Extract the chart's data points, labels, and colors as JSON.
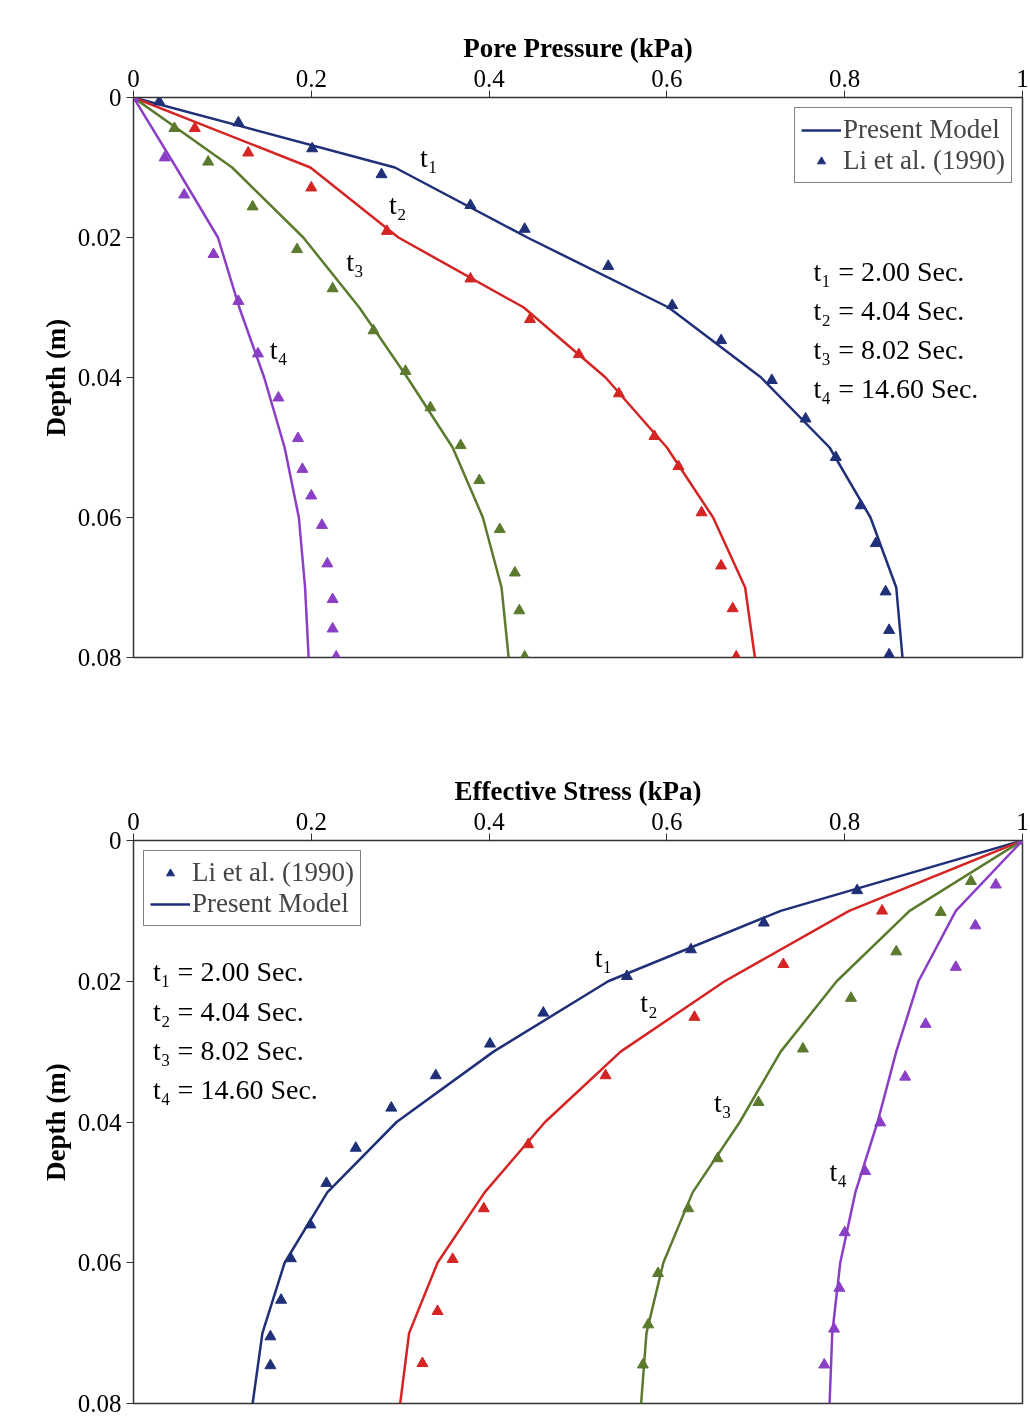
{
  "chart_data": [
    {
      "type": "line",
      "xlabel": "Pore Pressure (kPa)",
      "ylabel": "Depth (m)",
      "xlim": [
        0,
        1
      ],
      "xticks": [
        0,
        0.2,
        0.4,
        0.6,
        0.8,
        1
      ],
      "ylim": [
        0.08,
        0
      ],
      "yticks": [
        0,
        0.02,
        0.04,
        0.06,
        0.08
      ],
      "legend": "top right",
      "grid": false,
      "series": [
        {
          "name": "Present Model",
          "color": "#1f2f78",
          "x": [
            0,
            0.294,
            0.443,
            0.602,
            0.706,
            0.783,
            0.829,
            0.858,
            0.865
          ],
          "values": [
            0,
            0.01,
            0.02,
            0.03,
            0.04,
            0.05,
            0.06,
            0.07,
            0.08
          ]
        },
        {
          "name": "Li et al. (1990)",
          "type": "scatter",
          "marker": "triangle",
          "color": "#1f2f78",
          "x": [
            0,
            0.029,
            0.118,
            0.201,
            0.279,
            0.379,
            0.44,
            0.534,
            0.606,
            0.661,
            0.718,
            0.756,
            0.79,
            0.818,
            0.835,
            0.846,
            0.85,
            0.85
          ],
          "values": [
            0,
            0.0006,
            0.0036,
            0.0073,
            0.011,
            0.0154,
            0.0188,
            0.0241,
            0.0297,
            0.0347,
            0.0404,
            0.0459,
            0.0514,
            0.0583,
            0.0637,
            0.0706,
            0.0761,
            0.0796
          ]
        },
        {
          "color": "#d42424",
          "x": [
            0,
            0.199,
            0.298,
            0.439,
            0.531,
            0.6,
            0.652,
            0.688,
            0.699
          ],
          "values": [
            0,
            0.01,
            0.02,
            0.03,
            0.04,
            0.05,
            0.06,
            0.07,
            0.08
          ]
        },
        {
          "type": "scatter",
          "marker": "triangle",
          "color": "#d42424",
          "x": [
            0,
            0.069,
            0.129,
            0.2,
            0.285,
            0.379,
            0.446,
            0.501,
            0.546,
            0.586,
            0.613,
            0.639,
            0.661,
            0.674,
            0.678
          ],
          "values": [
            0,
            0.0044,
            0.0079,
            0.0129,
            0.0191,
            0.0259,
            0.0317,
            0.0367,
            0.0423,
            0.0484,
            0.0527,
            0.0593,
            0.0669,
            0.073,
            0.0799
          ]
        },
        {
          "color": "#5b7a2e",
          "x": [
            0,
            0.111,
            0.191,
            0.254,
            0.308,
            0.359,
            0.393,
            0.414,
            0.422
          ],
          "values": [
            0,
            0.01,
            0.02,
            0.03,
            0.04,
            0.05,
            0.06,
            0.07,
            0.08
          ]
        },
        {
          "type": "scatter",
          "marker": "triangle",
          "color": "#5b7a2e",
          "x": [
            0,
            0.046,
            0.084,
            0.134,
            0.184,
            0.224,
            0.27,
            0.306,
            0.334,
            0.368,
            0.389,
            0.412,
            0.429,
            0.434,
            0.44
          ],
          "values": [
            0,
            0.0044,
            0.0092,
            0.0156,
            0.0217,
            0.0273,
            0.0333,
            0.0391,
            0.0443,
            0.0497,
            0.0547,
            0.0617,
            0.0679,
            0.0733,
            0.0799
          ]
        },
        {
          "color": "#8a3fc6",
          "x": [
            0,
            0.048,
            0.095,
            0.119,
            0.147,
            0.17,
            0.186,
            0.193,
            0.197
          ],
          "values": [
            0,
            0.01,
            0.02,
            0.03,
            0.04,
            0.05,
            0.06,
            0.07,
            0.08
          ]
        },
        {
          "type": "scatter",
          "marker": "triangle",
          "color": "#8a3fc6",
          "x": [
            0,
            0.035,
            0.057,
            0.09,
            0.118,
            0.14,
            0.163,
            0.185,
            0.19,
            0.2,
            0.212,
            0.218,
            0.224,
            0.224,
            0.228
          ],
          "values": [
            0,
            0.0086,
            0.0139,
            0.0224,
            0.0291,
            0.0366,
            0.0429,
            0.0487,
            0.0531,
            0.0569,
            0.0611,
            0.0666,
            0.0717,
            0.0759,
            0.0799
          ]
        }
      ],
      "annotations": [
        {
          "text": "t₁",
          "x": 0.312,
          "y": 0.0112
        },
        {
          "text": "t₂",
          "x": 0.277,
          "y": 0.0179
        },
        {
          "text": "t₃",
          "x": 0.229,
          "y": 0.026
        },
        {
          "text": "t₄",
          "x": 0.143,
          "y": 0.0386
        },
        "t₁ = 2.00   Sec.",
        "t₂ = 4.04   Sec.",
        "t₃ = 8.02   Sec.",
        "t₄ = 14.60 Sec."
      ]
    },
    {
      "type": "line",
      "xlabel": "Effective Stress (kPa)",
      "ylabel": "Depth (m)",
      "xlim": [
        0,
        1
      ],
      "xticks": [
        0,
        0.2,
        0.4,
        0.6,
        0.8,
        1
      ],
      "ylim": [
        0.08,
        0
      ],
      "yticks": [
        0,
        0.02,
        0.04,
        0.06,
        0.08
      ],
      "legend": "top left",
      "grid": false,
      "series": [
        {
          "name": "Li et al. (1990)",
          "type": "scatter",
          "marker": "triangle",
          "color": "#1f2f78",
          "x": [
            1,
            0.814,
            0.709,
            0.627,
            0.555,
            0.461,
            0.401,
            0.34,
            0.29,
            0.25,
            0.217,
            0.199,
            0.177,
            0.166,
            0.154,
            0.154
          ],
          "values": [
            0,
            0.0071,
            0.0117,
            0.0155,
            0.0193,
            0.0245,
            0.0289,
            0.0334,
            0.038,
            0.0437,
            0.0487,
            0.0546,
            0.0594,
            0.0653,
            0.0705,
            0.0746
          ]
        },
        {
          "name": "Present Model",
          "color": "#1f2f78",
          "x": [
            1,
            0.728,
            0.534,
            0.405,
            0.296,
            0.218,
            0.17,
            0.145,
            0.134
          ],
          "values": [
            0,
            0.01,
            0.02,
            0.03,
            0.04,
            0.05,
            0.06,
            0.07,
            0.08
          ]
        },
        {
          "color": "#d42424",
          "x": [
            1,
            0.805,
            0.665,
            0.548,
            0.463,
            0.395,
            0.342,
            0.31,
            0.3
          ],
          "values": [
            0,
            0.01,
            0.02,
            0.03,
            0.04,
            0.05,
            0.06,
            0.07,
            0.08
          ]
        },
        {
          "type": "scatter",
          "marker": "triangle",
          "color": "#d42424",
          "x": [
            1,
            0.842,
            0.731,
            0.631,
            0.531,
            0.444,
            0.394,
            0.359,
            0.342,
            0.325
          ],
          "values": [
            0,
            0.01,
            0.0176,
            0.0251,
            0.0334,
            0.0432,
            0.0523,
            0.0595,
            0.0669,
            0.0743
          ]
        },
        {
          "color": "#5b7a2e",
          "x": [
            1,
            0.873,
            0.791,
            0.728,
            0.682,
            0.629,
            0.596,
            0.577,
            0.571
          ],
          "values": [
            0,
            0.01,
            0.02,
            0.03,
            0.04,
            0.05,
            0.06,
            0.07,
            0.08
          ]
        },
        {
          "type": "scatter",
          "marker": "triangle",
          "color": "#5b7a2e",
          "x": [
            1,
            0.942,
            0.908,
            0.858,
            0.807,
            0.753,
            0.703,
            0.657,
            0.624,
            0.59,
            0.579,
            0.573
          ],
          "values": [
            0,
            0.0058,
            0.0102,
            0.0158,
            0.0224,
            0.0296,
            0.0372,
            0.0452,
            0.0523,
            0.0615,
            0.0688,
            0.0745
          ]
        },
        {
          "color": "#8a3fc6",
          "x": [
            1,
            0.925,
            0.883,
            0.858,
            0.837,
            0.812,
            0.795,
            0.786,
            0.783
          ],
          "values": [
            0,
            0.01,
            0.02,
            0.03,
            0.04,
            0.05,
            0.06,
            0.07,
            0.08
          ]
        },
        {
          "type": "scatter",
          "marker": "triangle",
          "color": "#8a3fc6",
          "x": [
            1,
            0.97,
            0.947,
            0.925,
            0.891,
            0.868,
            0.84,
            0.823,
            0.8,
            0.794,
            0.788,
            0.777
          ],
          "values": [
            0,
            0.0063,
            0.0121,
            0.018,
            0.0261,
            0.0336,
            0.0401,
            0.047,
            0.0557,
            0.0636,
            0.0694,
            0.0745
          ]
        }
      ],
      "annotations": [
        {
          "text": "t₁",
          "x": 0.549,
          "y": 0.0192
        },
        {
          "text": "t₂",
          "x": 0.6,
          "y": 0.0256
        },
        {
          "text": "t₃",
          "x": 0.683,
          "y": 0.0398
        },
        {
          "text": "t₄",
          "x": 0.813,
          "y": 0.0496
        },
        "t₁ = 2.00   Sec.",
        "t₂ = 4.04   Sec.",
        "t₃ = 8.02   Sec.",
        "t₄ = 14.60 Sec."
      ]
    }
  ]
}
